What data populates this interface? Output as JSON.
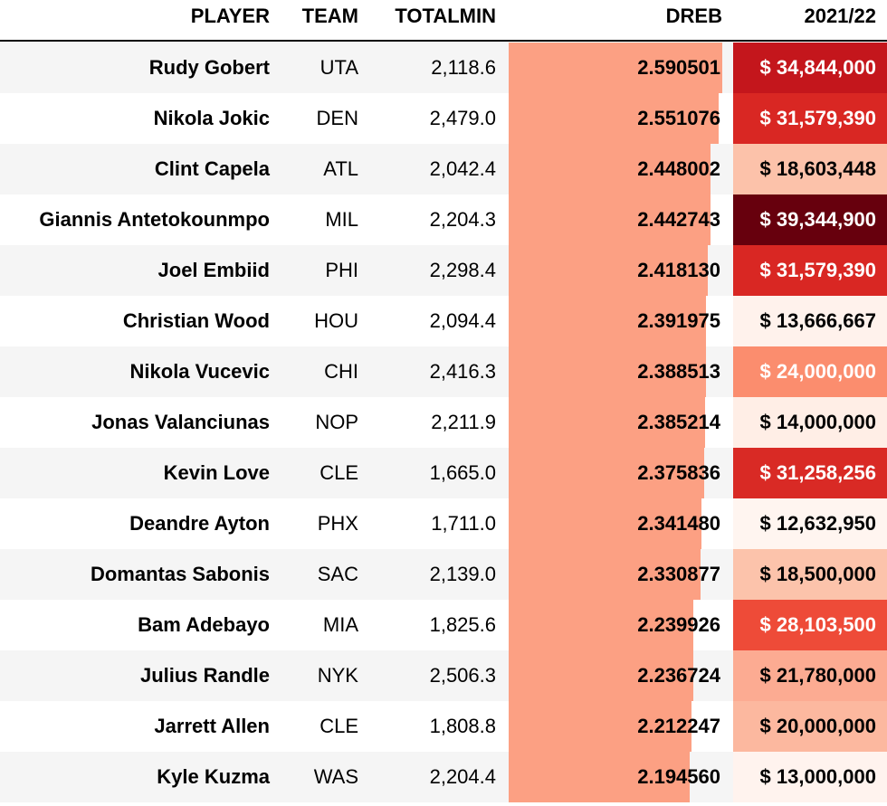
{
  "headers": {
    "player": "PLAYER",
    "team": "TEAM",
    "totalmin": "TOTALMIN",
    "dreb": "DREB",
    "salary": "2021/22"
  },
  "colors": {
    "dreb_bar": "#fca083",
    "row_stripe": "#f5f5f5"
  },
  "dreb_scale": {
    "min": 0,
    "max": 2.590501
  },
  "rows": [
    {
      "player": "Rudy Gobert",
      "team": "UTA",
      "totalmin": "2,118.6",
      "dreb": "2.590501",
      "dreb_value": 2.590501,
      "salary": "$ 34,844,000",
      "salary_bg": "#c4161c",
      "salary_color": "#ffffff"
    },
    {
      "player": "Nikola Jokic",
      "team": "DEN",
      "totalmin": "2,479.0",
      "dreb": "2.551076",
      "dreb_value": 2.551076,
      "salary": "$ 31,579,390",
      "salary_bg": "#d92723",
      "salary_color": "#ffffff"
    },
    {
      "player": "Clint Capela",
      "team": "ATL",
      "totalmin": "2,042.4",
      "dreb": "2.448002",
      "dreb_value": 2.448002,
      "salary": "$ 18,603,448",
      "salary_bg": "#fcc2aa",
      "salary_color": "#000000"
    },
    {
      "player": "Giannis Antetokounmpo",
      "team": "MIL",
      "totalmin": "2,204.3",
      "dreb": "2.442743",
      "dreb_value": 2.442743,
      "salary": "$ 39,344,900",
      "salary_bg": "#67000d",
      "salary_color": "#ffffff"
    },
    {
      "player": "Joel Embiid",
      "team": "PHI",
      "totalmin": "2,298.4",
      "dreb": "2.418130",
      "dreb_value": 2.41813,
      "salary": "$ 31,579,390",
      "salary_bg": "#d92723",
      "salary_color": "#ffffff"
    },
    {
      "player": "Christian Wood",
      "team": "HOU",
      "totalmin": "2,094.4",
      "dreb": "2.391975",
      "dreb_value": 2.391975,
      "salary": "$ 13,666,667",
      "salary_bg": "#fff2ec",
      "salary_color": "#000000"
    },
    {
      "player": "Nikola Vucevic",
      "team": "CHI",
      "totalmin": "2,416.3",
      "dreb": "2.388513",
      "dreb_value": 2.388513,
      "salary": "$ 24,000,000",
      "salary_bg": "#fb8d6e",
      "salary_color": "#ffffff"
    },
    {
      "player": "Jonas Valanciunas",
      "team": "NOP",
      "totalmin": "2,211.9",
      "dreb": "2.385214",
      "dreb_value": 2.385214,
      "salary": "$ 14,000,000",
      "salary_bg": "#ffeee6",
      "salary_color": "#000000"
    },
    {
      "player": "Kevin Love",
      "team": "CLE",
      "totalmin": "1,665.0",
      "dreb": "2.375836",
      "dreb_value": 2.375836,
      "salary": "$ 31,258,256",
      "salary_bg": "#d92a25",
      "salary_color": "#ffffff"
    },
    {
      "player": "Deandre Ayton",
      "team": "PHX",
      "totalmin": "1,711.0",
      "dreb": "2.341480",
      "dreb_value": 2.34148,
      "salary": "$ 12,632,950",
      "salary_bg": "#fff5f0",
      "salary_color": "#000000"
    },
    {
      "player": "Domantas Sabonis",
      "team": "SAC",
      "totalmin": "2,139.0",
      "dreb": "2.330877",
      "dreb_value": 2.330877,
      "salary": "$ 18,500,000",
      "salary_bg": "#fcc3ab",
      "salary_color": "#000000"
    },
    {
      "player": "Bam Adebayo",
      "team": "MIA",
      "totalmin": "1,825.6",
      "dreb": "2.239926",
      "dreb_value": 2.239926,
      "salary": "$ 28,103,500",
      "salary_bg": "#ee4b38",
      "salary_color": "#ffffff"
    },
    {
      "player": "Julius Randle",
      "team": "NYK",
      "totalmin": "2,506.3",
      "dreb": "2.236724",
      "dreb_value": 2.236724,
      "salary": "$ 21,780,000",
      "salary_bg": "#fcab92",
      "salary_color": "#000000"
    },
    {
      "player": "Jarrett Allen",
      "team": "CLE",
      "totalmin": "1,808.8",
      "dreb": "2.212247",
      "dreb_value": 2.212247,
      "salary": "$ 20,000,000",
      "salary_bg": "#fcb89f",
      "salary_color": "#000000"
    },
    {
      "player": "Kyle Kuzma",
      "team": "WAS",
      "totalmin": "2,204.4",
      "dreb": "2.194560",
      "dreb_value": 2.19456,
      "salary": "$ 13,000,000",
      "salary_bg": "#fff3ee",
      "salary_color": "#000000"
    }
  ]
}
